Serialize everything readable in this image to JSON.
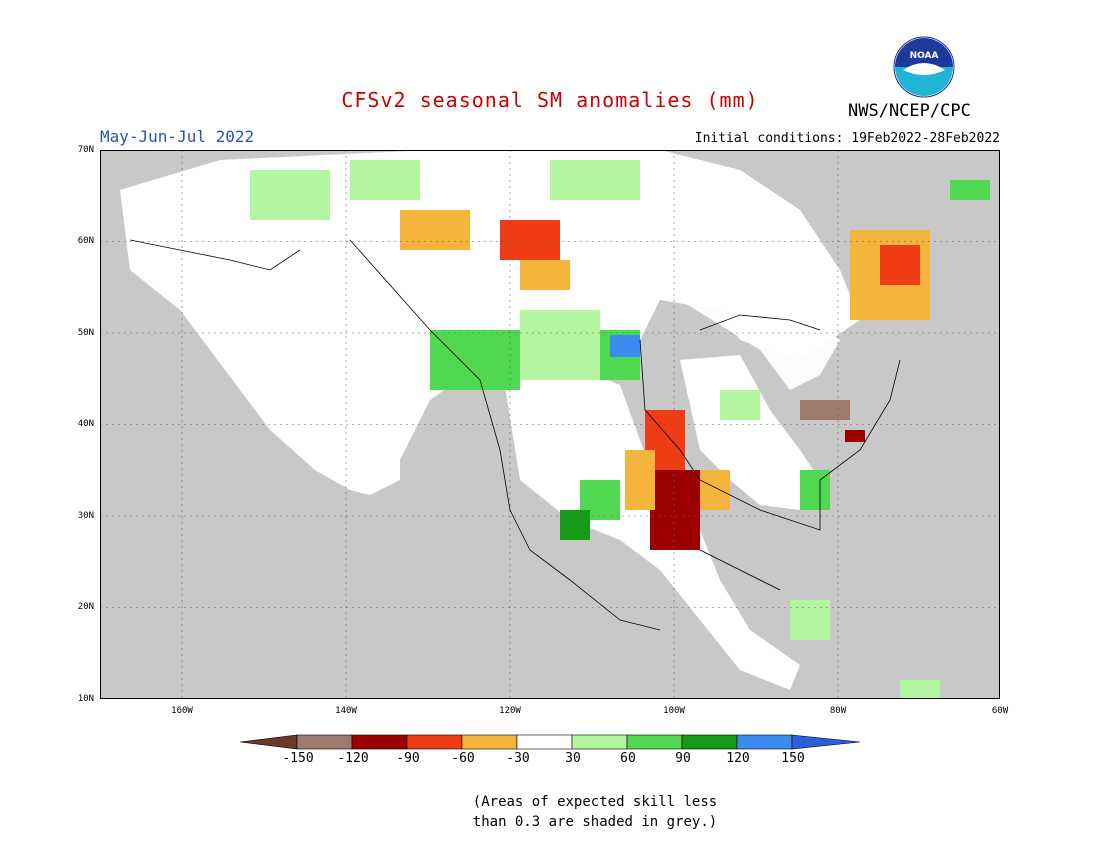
{
  "header": {
    "title": "CFSv2 seasonal SM anomalies (mm)",
    "agency": "NWS/NCEP/CPC",
    "period": "May-Jun-Jul 2022",
    "initial_conditions": "Initial conditions: 19Feb2022-28Feb2022",
    "logo_text": "NOAA"
  },
  "axes": {
    "lat_labels": [
      "70N",
      "60N",
      "50N",
      "40N",
      "30N",
      "20N",
      "10N"
    ],
    "lon_labels": [
      "160W",
      "140W",
      "120W",
      "100W",
      "80W",
      "60W"
    ]
  },
  "colorbar": {
    "labels": [
      "-150",
      "-120",
      "-90",
      "-60",
      "-30",
      "30",
      "60",
      "90",
      "120",
      "150"
    ],
    "colors": [
      "#6b3a2a",
      "#a07a6e",
      "#9c0000",
      "#f03c14",
      "#f5b43c",
      "#ffffff",
      "#b4f5a0",
      "#50d850",
      "#169b16",
      "#3c8cf0",
      "#2860dc"
    ]
  },
  "note": {
    "line1": "(Areas of expected skill less",
    "line2": "than 0.3 are shaded in grey.)"
  },
  "colors": {
    "land_grey": "#c8c8c8",
    "ocean": "#c8c8c8",
    "title_red": "#cc0000",
    "period_blue": "#2a52be"
  }
}
